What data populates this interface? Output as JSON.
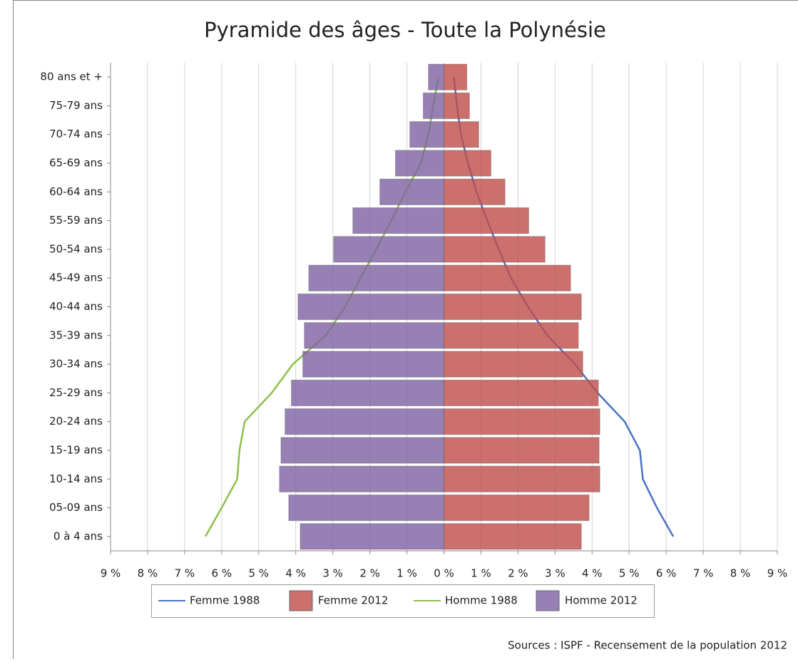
{
  "chart_data": {
    "type": "pyramid",
    "title": "Pyramide des âges - Toute la Polynésie",
    "source": "Sources : ISPF - Recensement de la population 2012",
    "categories": [
      "80 ans et +",
      "75-79 ans",
      "70-74 ans",
      "65-69 ans",
      "60-64 ans",
      "55-59 ans",
      "50-54 ans",
      "45-49 ans",
      "40-44 ans",
      "35-39 ans",
      "30-34 ans",
      "25-29 ans",
      "20-24 ans",
      "15-19 ans",
      "10-14 ans",
      "05-09 ans",
      "0 à 4 ans"
    ],
    "series": [
      {
        "name": "Femme 1988",
        "type": "line",
        "color": "#4a72c2",
        "values": [
          0.27,
          0.35,
          0.46,
          0.65,
          0.88,
          1.17,
          1.48,
          1.81,
          2.27,
          2.79,
          3.54,
          4.15,
          4.88,
          5.29,
          5.37,
          5.75,
          6.19
        ]
      },
      {
        "name": "Femme 2012",
        "type": "bar",
        "color": "#c0504d",
        "values": [
          0.62,
          0.69,
          0.94,
          1.27,
          1.65,
          2.29,
          2.73,
          3.42,
          3.71,
          3.63,
          3.75,
          4.17,
          4.21,
          4.19,
          4.21,
          3.92,
          3.71
        ]
      },
      {
        "name": "Homme 1988",
        "type": "line",
        "color": "#8cc04a",
        "values": [
          -0.15,
          -0.29,
          -0.42,
          -0.62,
          -1.04,
          -1.42,
          -1.83,
          -2.25,
          -2.67,
          -3.19,
          -4.08,
          -4.65,
          -5.38,
          -5.52,
          -5.58,
          -6.0,
          -6.44
        ]
      },
      {
        "name": "Homme 2012",
        "type": "bar",
        "color": "#8064a2",
        "values": [
          -0.42,
          -0.56,
          -0.92,
          -1.31,
          -1.73,
          -2.46,
          -2.98,
          -3.65,
          -3.94,
          -3.77,
          -3.81,
          -4.12,
          -4.29,
          -4.4,
          -4.44,
          -4.19,
          -3.88
        ]
      }
    ],
    "xlim": [
      -9,
      9
    ],
    "xticks": [
      {
        "value": -9,
        "label": "9 %"
      },
      {
        "value": -8,
        "label": "8 %"
      },
      {
        "value": -7,
        "label": "7 %"
      },
      {
        "value": -6,
        "label": "6 %"
      },
      {
        "value": -5,
        "label": "5 %"
      },
      {
        "value": -4,
        "label": "4 %"
      },
      {
        "value": -3,
        "label": "3 %"
      },
      {
        "value": -2,
        "label": "2 %"
      },
      {
        "value": -1,
        "label": "1 %"
      },
      {
        "value": 0,
        "label": "0 %"
      },
      {
        "value": 1,
        "label": "1 %"
      },
      {
        "value": 2,
        "label": "2 %"
      },
      {
        "value": 3,
        "label": "3 %"
      },
      {
        "value": 4,
        "label": "4 %"
      },
      {
        "value": 5,
        "label": "5 %"
      },
      {
        "value": 6,
        "label": "6 %"
      },
      {
        "value": 7,
        "label": "7 %"
      },
      {
        "value": 8,
        "label": "8 %"
      },
      {
        "value": 9,
        "label": "9 %"
      }
    ],
    "grid": true,
    "legend": "bottom"
  }
}
